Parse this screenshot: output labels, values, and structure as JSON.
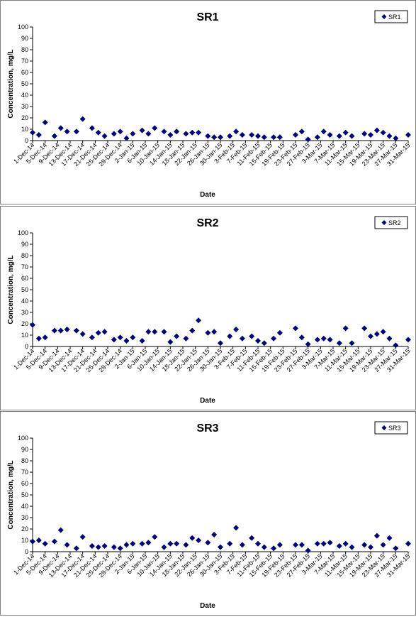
{
  "chart_data": [
    {
      "type": "scatter",
      "title": "SR1",
      "xlabel": "Date",
      "ylabel": "Concentration, mg/L",
      "ylim": [
        0,
        100
      ],
      "yticks": [
        0,
        10,
        20,
        30,
        40,
        50,
        60,
        70,
        80,
        90,
        100
      ],
      "xlim": [
        "1-Dec-14",
        "31-Mar-15"
      ],
      "xticks": [
        "1-Dec-14",
        "5-Dec-14",
        "9-Dec-14",
        "13-Dec-14",
        "17-Dec-14",
        "21-Dec-14",
        "25-Dec-14",
        "29-Dec-14",
        "2-Jan-15",
        "6-Jan-15",
        "10-Jan-15",
        "14-Jan-15",
        "18-Jan-15",
        "22-Jan-15",
        "26-Jan-15",
        "30-Jan-15",
        "3-Feb-15",
        "7-Feb-15",
        "11-Feb-15",
        "15-Feb-15",
        "19-Feb-15",
        "23-Feb-15",
        "27-Feb-15",
        "3-Mar-15",
        "7-Mar-15",
        "11-Mar-15",
        "15-Mar-15",
        "19-Mar-15",
        "23-Mar-15",
        "27-Mar-15",
        "31-Mar-15"
      ],
      "grid": false,
      "legend": "top-right",
      "color": "#000080",
      "series": [
        {
          "name": "SR1",
          "points": [
            [
              "1-Dec-14",
              7
            ],
            [
              "3-Dec-14",
              5
            ],
            [
              "5-Dec-14",
              16
            ],
            [
              "8-Dec-14",
              4
            ],
            [
              "10-Dec-14",
              11
            ],
            [
              "12-Dec-14",
              8
            ],
            [
              "15-Dec-14",
              8
            ],
            [
              "17-Dec-14",
              19
            ],
            [
              "20-Dec-14",
              11
            ],
            [
              "22-Dec-14",
              7
            ],
            [
              "24-Dec-14",
              4
            ],
            [
              "27-Dec-14",
              6
            ],
            [
              "29-Dec-14",
              8
            ],
            [
              "31-Dec-14",
              2
            ],
            [
              "2-Jan-15",
              6
            ],
            [
              "5-Jan-15",
              9
            ],
            [
              "7-Jan-15",
              6
            ],
            [
              "9-Jan-15",
              11
            ],
            [
              "12-Jan-15",
              8
            ],
            [
              "14-Jan-15",
              5
            ],
            [
              "16-Jan-15",
              8
            ],
            [
              "19-Jan-15",
              6
            ],
            [
              "21-Jan-15",
              7
            ],
            [
              "23-Jan-15",
              7
            ],
            [
              "26-Jan-15",
              4
            ],
            [
              "28-Jan-15",
              3
            ],
            [
              "30-Jan-15",
              3
            ],
            [
              "2-Feb-15",
              4
            ],
            [
              "4-Feb-15",
              8
            ],
            [
              "6-Feb-15",
              5
            ],
            [
              "9-Feb-15",
              5
            ],
            [
              "11-Feb-15",
              4
            ],
            [
              "13-Feb-15",
              3
            ],
            [
              "16-Feb-15",
              3
            ],
            [
              "18-Feb-15",
              3
            ],
            [
              "23-Feb-15",
              5
            ],
            [
              "25-Feb-15",
              8
            ],
            [
              "27-Feb-15",
              1
            ],
            [
              "2-Mar-15",
              3
            ],
            [
              "4-Mar-15",
              8
            ],
            [
              "6-Mar-15",
              5
            ],
            [
              "9-Mar-15",
              4
            ],
            [
              "11-Mar-15",
              7
            ],
            [
              "13-Mar-15",
              4
            ],
            [
              "17-Mar-15",
              6
            ],
            [
              "19-Mar-15",
              5
            ],
            [
              "21-Mar-15",
              9
            ],
            [
              "23-Mar-15",
              7
            ],
            [
              "25-Mar-15",
              4
            ],
            [
              "27-Mar-15",
              2
            ],
            [
              "31-Mar-15",
              5
            ]
          ]
        }
      ]
    },
    {
      "type": "scatter",
      "title": "SR2",
      "xlabel": "Date",
      "ylabel": "Concentration, mg/L",
      "ylim": [
        0,
        100
      ],
      "yticks": [
        0,
        10,
        20,
        30,
        40,
        50,
        60,
        70,
        80,
        90,
        100
      ],
      "xlim": [
        "1-Dec-14",
        "31-Mar-15"
      ],
      "xticks": [
        "1-Dec-14",
        "5-Dec-14",
        "9-Dec-14",
        "13-Dec-14",
        "17-Dec-14",
        "21-Dec-14",
        "25-Dec-14",
        "29-Dec-14",
        "2-Jan-15",
        "6-Jan-15",
        "10-Jan-15",
        "14-Jan-15",
        "18-Jan-15",
        "22-Jan-15",
        "26-Jan-15",
        "30-Jan-15",
        "3-Feb-15",
        "7-Feb-15",
        "11-Feb-15",
        "15-Feb-15",
        "19-Feb-15",
        "23-Feb-15",
        "27-Feb-15",
        "3-Mar-15",
        "7-Mar-15",
        "11-Mar-15",
        "15-Mar-15",
        "19-Mar-15",
        "23-Mar-15",
        "27-Mar-15",
        "31-Mar-15"
      ],
      "grid": false,
      "legend": "top-right",
      "color": "#000080",
      "series": [
        {
          "name": "SR2",
          "points": [
            [
              "1-Dec-14",
              19
            ],
            [
              "3-Dec-14",
              7
            ],
            [
              "5-Dec-14",
              8
            ],
            [
              "8-Dec-14",
              14
            ],
            [
              "10-Dec-14",
              14
            ],
            [
              "12-Dec-14",
              15
            ],
            [
              "15-Dec-14",
              14
            ],
            [
              "17-Dec-14",
              11
            ],
            [
              "20-Dec-14",
              8
            ],
            [
              "22-Dec-14",
              12
            ],
            [
              "24-Dec-14",
              13
            ],
            [
              "27-Dec-14",
              6
            ],
            [
              "29-Dec-14",
              8
            ],
            [
              "31-Dec-14",
              5
            ],
            [
              "2-Jan-15",
              8
            ],
            [
              "5-Jan-15",
              5
            ],
            [
              "7-Jan-15",
              13
            ],
            [
              "9-Jan-15",
              13
            ],
            [
              "12-Jan-15",
              13
            ],
            [
              "14-Jan-15",
              4
            ],
            [
              "16-Jan-15",
              9
            ],
            [
              "19-Jan-15",
              7
            ],
            [
              "21-Jan-15",
              14
            ],
            [
              "23-Jan-15",
              23
            ],
            [
              "26-Jan-15",
              12
            ],
            [
              "28-Jan-15",
              13
            ],
            [
              "30-Jan-15",
              3
            ],
            [
              "2-Feb-15",
              9
            ],
            [
              "4-Feb-15",
              15
            ],
            [
              "6-Feb-15",
              7
            ],
            [
              "9-Feb-15",
              9
            ],
            [
              "11-Feb-15",
              5
            ],
            [
              "13-Feb-15",
              3
            ],
            [
              "16-Feb-15",
              7
            ],
            [
              "18-Feb-15",
              12
            ],
            [
              "23-Feb-15",
              16
            ],
            [
              "25-Feb-15",
              8
            ],
            [
              "27-Feb-15",
              2
            ],
            [
              "2-Mar-15",
              6
            ],
            [
              "4-Mar-15",
              7
            ],
            [
              "6-Mar-15",
              6
            ],
            [
              "9-Mar-15",
              3
            ],
            [
              "11-Mar-15",
              16
            ],
            [
              "13-Mar-15",
              3
            ],
            [
              "17-Mar-15",
              16
            ],
            [
              "19-Mar-15",
              9
            ],
            [
              "21-Mar-15",
              11
            ],
            [
              "23-Mar-15",
              13
            ],
            [
              "25-Mar-15",
              7
            ],
            [
              "27-Mar-15",
              1
            ],
            [
              "31-Mar-15",
              6
            ]
          ]
        }
      ]
    },
    {
      "type": "scatter",
      "title": "SR3",
      "xlabel": "Date",
      "ylabel": "Concentration, mg/L",
      "ylim": [
        0,
        100
      ],
      "yticks": [
        0,
        10,
        20,
        30,
        40,
        50,
        60,
        70,
        80,
        90,
        100
      ],
      "xlim": [
        "1-Dec-14",
        "31-Mar-15"
      ],
      "xticks": [
        "1-Dec-14",
        "5-Dec-14",
        "9-Dec-14",
        "13-Dec-14",
        "17-Dec-14",
        "21-Dec-14",
        "25-Dec-14",
        "29-Dec-14",
        "2-Jan-15",
        "6-Jan-15",
        "10-Jan-15",
        "14-Jan-15",
        "18-Jan-15",
        "22-Jan-15",
        "26-Jan-15",
        "30-Jan-15",
        "3-Feb-15",
        "7-Feb-15",
        "11-Feb-15",
        "15-Feb-15",
        "19-Feb-15",
        "23-Feb-15",
        "27-Feb-15",
        "3-Mar-15",
        "7-Mar-15",
        "11-Mar-15",
        "15-Mar-15",
        "19-Mar-15",
        "23-Mar-15",
        "27-Mar-15",
        "31-Mar-15"
      ],
      "grid": false,
      "legend": "top-right",
      "color": "#000080",
      "series": [
        {
          "name": "SR3",
          "points": [
            [
              "1-Dec-14",
              9
            ],
            [
              "3-Dec-14",
              10
            ],
            [
              "5-Dec-14",
              7
            ],
            [
              "8-Dec-14",
              9
            ],
            [
              "10-Dec-14",
              19
            ],
            [
              "12-Dec-14",
              6
            ],
            [
              "15-Dec-14",
              3
            ],
            [
              "17-Dec-14",
              13
            ],
            [
              "20-Dec-14",
              5
            ],
            [
              "22-Dec-14",
              4
            ],
            [
              "24-Dec-14",
              5
            ],
            [
              "27-Dec-14",
              4
            ],
            [
              "29-Dec-14",
              3
            ],
            [
              "31-Dec-14",
              6
            ],
            [
              "2-Jan-15",
              7
            ],
            [
              "5-Jan-15",
              7
            ],
            [
              "7-Jan-15",
              8
            ],
            [
              "9-Jan-15",
              13
            ],
            [
              "12-Jan-15",
              4
            ],
            [
              "14-Jan-15",
              7
            ],
            [
              "16-Jan-15",
              7
            ],
            [
              "19-Jan-15",
              6
            ],
            [
              "21-Jan-15",
              12
            ],
            [
              "23-Jan-15",
              10
            ],
            [
              "26-Jan-15",
              8
            ],
            [
              "28-Jan-15",
              15
            ],
            [
              "30-Jan-15",
              4
            ],
            [
              "2-Feb-15",
              7
            ],
            [
              "4-Feb-15",
              21
            ],
            [
              "6-Feb-15",
              6
            ],
            [
              "9-Feb-15",
              12
            ],
            [
              "11-Feb-15",
              7
            ],
            [
              "13-Feb-15",
              4
            ],
            [
              "16-Feb-15",
              3
            ],
            [
              "18-Feb-15",
              6
            ],
            [
              "23-Feb-15",
              6
            ],
            [
              "25-Feb-15",
              6
            ],
            [
              "27-Feb-15",
              1
            ],
            [
              "2-Mar-15",
              7
            ],
            [
              "4-Mar-15",
              7
            ],
            [
              "6-Mar-15",
              8
            ],
            [
              "9-Mar-15",
              5
            ],
            [
              "11-Mar-15",
              7
            ],
            [
              "13-Mar-15",
              4
            ],
            [
              "17-Mar-15",
              6
            ],
            [
              "19-Mar-15",
              4
            ],
            [
              "21-Mar-15",
              14
            ],
            [
              "23-Mar-15",
              6
            ],
            [
              "25-Mar-15",
              12
            ],
            [
              "27-Mar-15",
              3
            ],
            [
              "31-Mar-15",
              7
            ]
          ]
        }
      ]
    }
  ]
}
